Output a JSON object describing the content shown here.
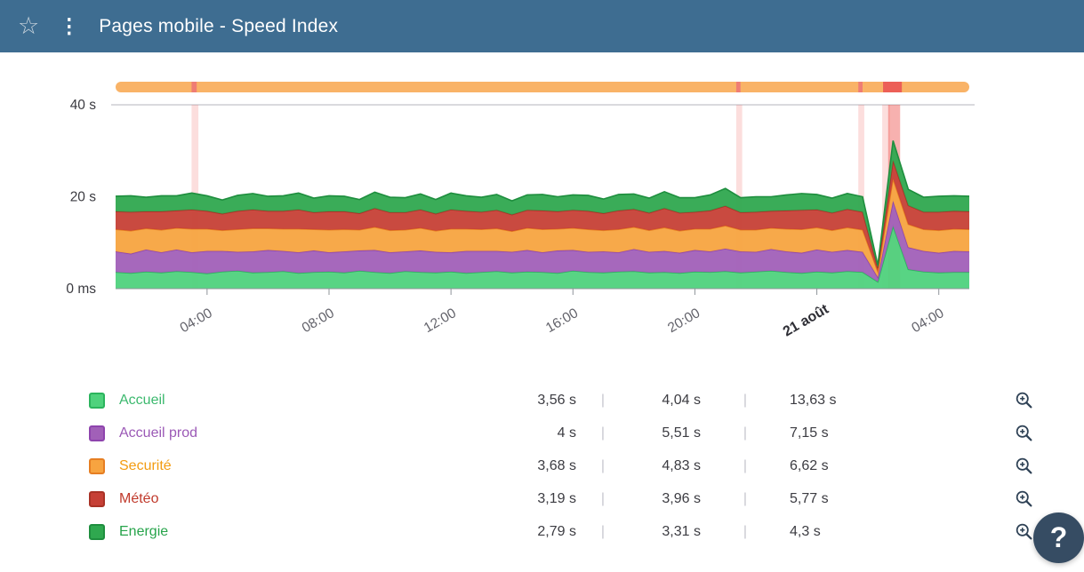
{
  "theme": {
    "header_bg": "#3e6d91",
    "help_button_bg": "#364c63",
    "incident_band_color": "rgba(239,90,85,0.20)",
    "incident_band_strong_color": "rgba(236,70,65,0.42)"
  },
  "icons": {
    "star": "☆",
    "kebab": "⋮",
    "zoom_in": "zoom-in-magnifier"
  },
  "header": {
    "title": "Pages mobile - Speed Index"
  },
  "help_button": {
    "label": "?"
  },
  "chart_data": {
    "type": "area",
    "stacked": true,
    "title": "Pages mobile - Speed Index",
    "ylim": [
      0,
      40
    ],
    "y_ticks": [
      {
        "value": 0,
        "label": "0 ms"
      },
      {
        "value": 20,
        "label": "20 s"
      },
      {
        "value": 40,
        "label": "40 s"
      }
    ],
    "x_start_hours": 1,
    "x_end_hours": 29,
    "point_interval_hours": 0.5,
    "x_ticks": [
      {
        "hours": 4,
        "label": "04:00",
        "bold": false
      },
      {
        "hours": 8,
        "label": "08:00",
        "bold": false
      },
      {
        "hours": 12,
        "label": "12:00",
        "bold": false
      },
      {
        "hours": 16,
        "label": "16:00",
        "bold": false
      },
      {
        "hours": 20,
        "label": "20:00",
        "bold": false
      },
      {
        "hours": 24,
        "label": "21 août",
        "bold": true
      },
      {
        "hours": 28,
        "label": "04:00",
        "bold": false
      }
    ],
    "availability_bar": {
      "color": "#f9b367",
      "segments": [
        {
          "fraction": 0.089,
          "width_fraction": 0.006,
          "color": "#ef7d74"
        },
        {
          "fraction": 0.727,
          "width_fraction": 0.005,
          "color": "#ef7d74"
        },
        {
          "fraction": 0.87,
          "width_fraction": 0.005,
          "color": "#ef7d74"
        },
        {
          "fraction": 0.899,
          "width_fraction": 0.022,
          "color": "#ec5f57"
        }
      ]
    },
    "incidents": [
      {
        "fraction": 0.089,
        "width_fraction": 0.008,
        "strong": false
      },
      {
        "fraction": 0.727,
        "width_fraction": 0.007,
        "strong": false
      },
      {
        "fraction": 0.87,
        "width_fraction": 0.007,
        "strong": false
      },
      {
        "fraction": 0.898,
        "width_fraction": 0.009,
        "strong": false
      },
      {
        "fraction": 0.905,
        "width_fraction": 0.014,
        "strong": true
      }
    ],
    "series": [
      {
        "name": "Accueil",
        "fill": "#4fd27d",
        "stroke": "#2bb45d",
        "values": [
          3.6,
          3.4,
          3.7,
          3.5,
          3.8,
          3.6,
          3.3,
          3.7,
          3.9,
          3.5,
          3.6,
          3.8,
          3.4,
          3.6,
          3.7,
          3.5,
          3.9,
          3.6,
          3.4,
          3.8,
          3.6,
          3.5,
          3.7,
          3.4,
          3.6,
          3.8,
          3.5,
          3.7,
          3.6,
          3.4,
          3.9,
          3.6,
          3.5,
          3.7,
          3.8,
          3.5,
          3.6,
          3.4,
          3.7,
          3.6,
          3.8,
          3.5,
          3.7,
          3.9,
          3.6,
          3.4,
          3.7,
          3.5,
          3.8,
          3.6,
          1.5,
          13.6,
          4.2,
          3.7,
          3.5,
          3.6,
          3.6
        ]
      },
      {
        "name": "Accueil prod",
        "fill": "#a160b8",
        "stroke": "#8e44ad",
        "values": [
          4.5,
          4.2,
          4.8,
          4.4,
          4.7,
          4.3,
          4.9,
          4.5,
          4.1,
          4.6,
          4.8,
          4.4,
          4.5,
          4.7,
          4.2,
          4.6,
          4.4,
          4.8,
          4.5,
          4.3,
          4.7,
          4.5,
          4.2,
          4.8,
          4.6,
          4.4,
          4.5,
          4.7,
          4.3,
          4.9,
          4.5,
          4.4,
          4.6,
          4.2,
          4.8,
          4.5,
          4.6,
          4.4,
          4.7,
          4.5,
          4.9,
          4.6,
          4.3,
          4.7,
          4.5,
          4.4,
          4.8,
          4.5,
          4.6,
          4.4,
          1.0,
          5.5,
          4.8,
          4.5,
          4.3,
          4.6,
          4.5
        ]
      },
      {
        "name": "Securité",
        "fill": "#f7a440",
        "stroke": "#e67e22",
        "values": [
          4.8,
          5.0,
          4.6,
          4.9,
          4.7,
          5.1,
          4.8,
          4.5,
          4.9,
          5.0,
          4.7,
          4.8,
          5.1,
          4.6,
          4.9,
          4.8,
          4.5,
          5.0,
          4.8,
          4.7,
          4.9,
          4.6,
          5.1,
          4.8,
          4.7,
          4.9,
          4.5,
          4.8,
          5.0,
          4.7,
          4.8,
          4.9,
          4.6,
          5.0,
          4.8,
          4.7,
          5.1,
          4.8,
          4.6,
          4.9,
          5.0,
          4.7,
          4.8,
          4.6,
          4.9,
          5.1,
          4.8,
          4.7,
          4.9,
          4.8,
          1.2,
          4.8,
          5.0,
          4.7,
          4.9,
          4.8,
          4.8
        ]
      },
      {
        "name": "Météo",
        "fill": "#c64036",
        "stroke": "#a93226",
        "values": [
          3.9,
          4.1,
          3.7,
          4.0,
          3.8,
          4.2,
          3.9,
          3.6,
          4.0,
          4.1,
          3.8,
          3.9,
          4.2,
          3.7,
          4.0,
          3.9,
          3.6,
          4.1,
          3.9,
          3.8,
          4.0,
          3.7,
          4.2,
          3.9,
          3.8,
          4.0,
          3.6,
          3.9,
          4.1,
          3.8,
          3.9,
          4.0,
          3.7,
          4.1,
          3.9,
          3.8,
          4.2,
          3.9,
          3.7,
          4.0,
          4.3,
          3.8,
          3.9,
          3.7,
          4.0,
          4.2,
          3.9,
          3.8,
          4.0,
          3.9,
          0.8,
          4.0,
          4.1,
          3.8,
          4.0,
          3.9,
          3.9
        ]
      },
      {
        "name": "Energie",
        "fill": "#2fa84f",
        "stroke": "#1e8e3e",
        "values": [
          3.3,
          3.5,
          3.1,
          3.4,
          3.2,
          3.6,
          3.3,
          3.0,
          3.4,
          3.5,
          3.2,
          3.3,
          3.6,
          3.1,
          3.4,
          3.3,
          3.0,
          3.5,
          3.3,
          3.2,
          3.4,
          3.1,
          3.6,
          3.3,
          3.2,
          3.4,
          3.0,
          3.3,
          3.5,
          3.2,
          3.3,
          3.4,
          3.1,
          3.5,
          3.3,
          3.2,
          3.6,
          3.3,
          3.1,
          3.4,
          3.8,
          3.2,
          3.3,
          3.1,
          3.4,
          3.6,
          3.3,
          3.2,
          3.4,
          3.3,
          0.6,
          4.3,
          3.5,
          3.2,
          3.4,
          3.3,
          3.3
        ]
      }
    ]
  },
  "legend": {
    "separator": "|",
    "rows": [
      {
        "name": "Accueil",
        "color": "#3cb96e",
        "swatch": "#4fd27d",
        "swatch_border": "#2bb45d",
        "stat1": "3,56 s",
        "stat2": "4,04 s",
        "stat3": "13,63 s"
      },
      {
        "name": "Accueil prod",
        "color": "#9b59b6",
        "swatch": "#a160b8",
        "swatch_border": "#8e44ad",
        "stat1": "4 s",
        "stat2": "5,51 s",
        "stat3": "7,15 s"
      },
      {
        "name": "Securité",
        "color": "#f39c12",
        "swatch": "#f7a440",
        "swatch_border": "#e67e22",
        "stat1": "3,68 s",
        "stat2": "4,83 s",
        "stat3": "6,62 s"
      },
      {
        "name": "Météo",
        "color": "#c0392b",
        "swatch": "#c64036",
        "swatch_border": "#a93226",
        "stat1": "3,19 s",
        "stat2": "3,96 s",
        "stat3": "5,77 s"
      },
      {
        "name": "Energie",
        "color": "#27a44b",
        "swatch": "#2fa84f",
        "swatch_border": "#1e8e3e",
        "stat1": "2,79 s",
        "stat2": "3,31 s",
        "stat3": "4,3 s"
      }
    ]
  }
}
